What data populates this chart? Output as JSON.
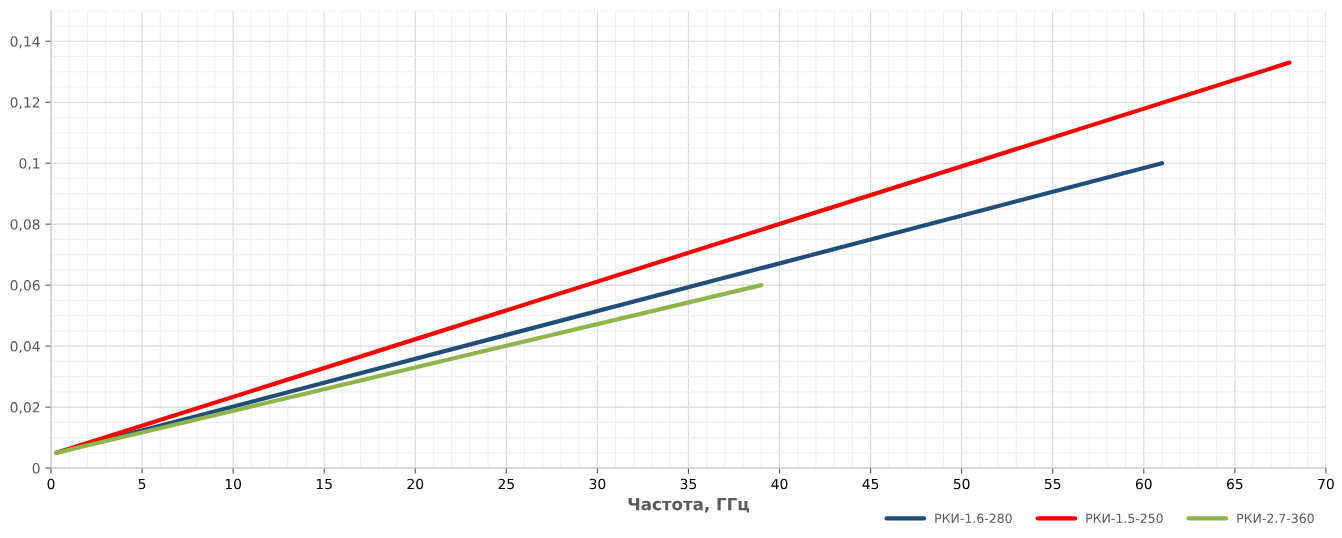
{
  "chart_data": {
    "type": "line",
    "xlabel": "Частота, ГГц",
    "xlim": [
      0,
      70
    ],
    "xticks": [
      0,
      5,
      10,
      15,
      20,
      25,
      30,
      35,
      40,
      45,
      50,
      55,
      60,
      65,
      70
    ],
    "ylim": [
      0,
      0.15
    ],
    "yticks": [
      0,
      {
        "value": 0.02,
        "label": "0,02"
      },
      {
        "value": 0.04,
        "label": "0,04"
      },
      {
        "value": 0.06,
        "label": "0,06"
      },
      {
        "value": 0.08,
        "label": "0,08"
      },
      {
        "value": 0.1,
        "label": "0,1"
      },
      {
        "value": 0.12,
        "label": "0,12"
      },
      {
        "value": 0.14,
        "label": "0,14"
      }
    ],
    "grid": true,
    "legend": "bottom right",
    "marker": "none",
    "line_style": "solid",
    "series": [
      {
        "name": "РКИ-1.6-280",
        "color": "#1f4e79",
        "x": [
          0.3,
          61
        ],
        "values": [
          0.005,
          0.1
        ]
      },
      {
        "name": "РКИ-1.5-250",
        "color": "#ff0000",
        "x": [
          0.3,
          68
        ],
        "values": [
          0.005,
          0.133
        ]
      },
      {
        "name": "РКИ-2.7-360",
        "color": "#8db54a",
        "x": [
          0.3,
          39
        ],
        "values": [
          0.005,
          0.06
        ]
      }
    ]
  }
}
